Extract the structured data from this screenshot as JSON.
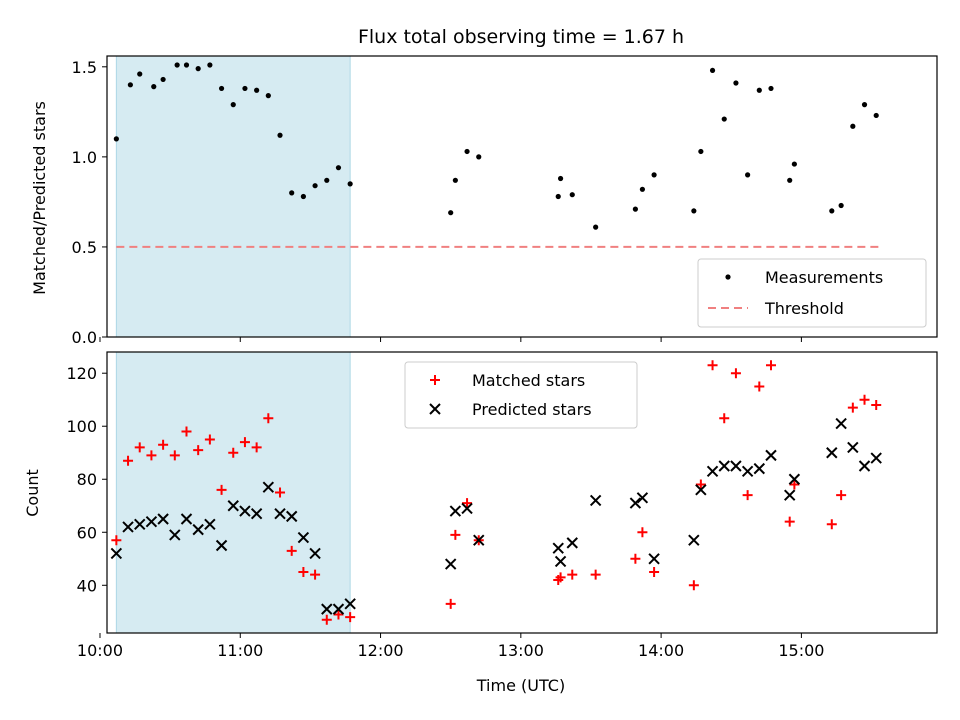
{
  "title": "Flux total observing time = 1.67 h",
  "xlabel": "Time (UTC)",
  "colors": {
    "highlight": "#add8e6",
    "threshold": "#f08080",
    "measurements": "#000000",
    "matched": "#ff0000",
    "predicted": "#000000"
  },
  "chart_data": [
    {
      "type": "scatter",
      "ylabel": "Matched/Predicted stars",
      "xlim": [
        "10:03",
        "15:58"
      ],
      "ylim": [
        0,
        1.5
      ],
      "x_ticks": [
        "10:00",
        "11:00",
        "12:00",
        "13:00",
        "14:00",
        "15:00"
      ],
      "y_ticks": [
        "0.0",
        "0.5",
        "1.0",
        "1.5"
      ],
      "highlight_span": [
        "10:07",
        "11:47"
      ],
      "legend": {
        "position": "lower right",
        "entries": [
          "Measurements",
          "Threshold"
        ]
      },
      "threshold": {
        "name": "Threshold",
        "y": 0.5,
        "x": [
          "10:07",
          "15:33"
        ],
        "style": "dashed"
      },
      "series": [
        {
          "name": "Measurements",
          "marker": "dot",
          "points": [
            [
              "10:07",
              1.1
            ],
            [
              "10:13",
              1.4
            ],
            [
              "10:17",
              1.46
            ],
            [
              "10:23",
              1.39
            ],
            [
              "10:27",
              1.43
            ],
            [
              "10:33",
              1.51
            ],
            [
              "10:37",
              1.51
            ],
            [
              "10:42",
              1.49
            ],
            [
              "10:47",
              1.51
            ],
            [
              "10:52",
              1.38
            ],
            [
              "10:57",
              1.29
            ],
            [
              "11:02",
              1.38
            ],
            [
              "11:07",
              1.37
            ],
            [
              "11:12",
              1.34
            ],
            [
              "11:17",
              1.12
            ],
            [
              "11:22",
              0.8
            ],
            [
              "11:27",
              0.78
            ],
            [
              "11:32",
              0.84
            ],
            [
              "11:37",
              0.87
            ],
            [
              "11:42",
              0.94
            ],
            [
              "11:47",
              0.85
            ],
            [
              "12:30",
              0.69
            ],
            [
              "12:32",
              0.87
            ],
            [
              "12:37",
              1.03
            ],
            [
              "12:42",
              1.0
            ],
            [
              "13:16",
              0.78
            ],
            [
              "13:17",
              0.88
            ],
            [
              "13:22",
              0.79
            ],
            [
              "13:32",
              0.61
            ],
            [
              "13:49",
              0.71
            ],
            [
              "13:52",
              0.82
            ],
            [
              "13:57",
              0.9
            ],
            [
              "14:14",
              0.7
            ],
            [
              "14:17",
              1.03
            ],
            [
              "14:22",
              1.48
            ],
            [
              "14:27",
              1.21
            ],
            [
              "14:32",
              1.41
            ],
            [
              "14:37",
              0.9
            ],
            [
              "14:42",
              1.37
            ],
            [
              "14:47",
              1.38
            ],
            [
              "14:55",
              0.87
            ],
            [
              "14:57",
              0.96
            ],
            [
              "15:13",
              0.7
            ],
            [
              "15:17",
              0.73
            ],
            [
              "15:22",
              1.17
            ],
            [
              "15:27",
              1.29
            ],
            [
              "15:32",
              1.23
            ]
          ]
        }
      ]
    },
    {
      "type": "scatter",
      "ylabel": "Count",
      "xlim": [
        "10:03",
        "15:58"
      ],
      "ylim": [
        22,
        128
      ],
      "x_ticks": [
        "10:00",
        "11:00",
        "12:00",
        "13:00",
        "14:00",
        "15:00"
      ],
      "y_ticks": [
        "40",
        "60",
        "80",
        "100",
        "120"
      ],
      "highlight_span": [
        "10:07",
        "11:47"
      ],
      "legend": {
        "position": "upper center",
        "entries": [
          "Matched stars",
          "Predicted stars"
        ]
      },
      "series": [
        {
          "name": "Matched stars",
          "marker": "plus",
          "points": [
            [
              "10:07",
              57
            ],
            [
              "10:12",
              87
            ],
            [
              "10:17",
              92
            ],
            [
              "10:22",
              89
            ],
            [
              "10:27",
              93
            ],
            [
              "10:32",
              89
            ],
            [
              "10:37",
              98
            ],
            [
              "10:42",
              91
            ],
            [
              "10:47",
              95
            ],
            [
              "10:52",
              76
            ],
            [
              "10:57",
              90
            ],
            [
              "11:02",
              94
            ],
            [
              "11:07",
              92
            ],
            [
              "11:12",
              103
            ],
            [
              "11:17",
              75
            ],
            [
              "11:22",
              53
            ],
            [
              "11:27",
              45
            ],
            [
              "11:32",
              44
            ],
            [
              "11:37",
              27
            ],
            [
              "11:42",
              29
            ],
            [
              "11:47",
              28
            ],
            [
              "12:30",
              33
            ],
            [
              "12:32",
              59
            ],
            [
              "12:37",
              71
            ],
            [
              "12:42",
              57
            ],
            [
              "13:16",
              42
            ],
            [
              "13:17",
              43
            ],
            [
              "13:22",
              44
            ],
            [
              "13:32",
              44
            ],
            [
              "13:49",
              50
            ],
            [
              "13:52",
              60
            ],
            [
              "13:57",
              45
            ],
            [
              "14:14",
              40
            ],
            [
              "14:17",
              78
            ],
            [
              "14:22",
              123
            ],
            [
              "14:27",
              103
            ],
            [
              "14:32",
              120
            ],
            [
              "14:37",
              74
            ],
            [
              "14:42",
              115
            ],
            [
              "14:47",
              123
            ],
            [
              "14:55",
              64
            ],
            [
              "14:57",
              78
            ],
            [
              "15:13",
              63
            ],
            [
              "15:17",
              74
            ],
            [
              "15:22",
              107
            ],
            [
              "15:27",
              110
            ],
            [
              "15:32",
              108
            ]
          ]
        },
        {
          "name": "Predicted stars",
          "marker": "x",
          "points": [
            [
              "10:07",
              52
            ],
            [
              "10:12",
              62
            ],
            [
              "10:17",
              63
            ],
            [
              "10:22",
              64
            ],
            [
              "10:27",
              65
            ],
            [
              "10:32",
              59
            ],
            [
              "10:37",
              65
            ],
            [
              "10:42",
              61
            ],
            [
              "10:47",
              63
            ],
            [
              "10:52",
              55
            ],
            [
              "10:57",
              70
            ],
            [
              "11:02",
              68
            ],
            [
              "11:07",
              67
            ],
            [
              "11:12",
              77
            ],
            [
              "11:17",
              67
            ],
            [
              "11:22",
              66
            ],
            [
              "11:27",
              58
            ],
            [
              "11:32",
              52
            ],
            [
              "11:37",
              31
            ],
            [
              "11:42",
              31
            ],
            [
              "11:47",
              33
            ],
            [
              "12:30",
              48
            ],
            [
              "12:32",
              68
            ],
            [
              "12:37",
              69
            ],
            [
              "12:42",
              57
            ],
            [
              "13:16",
              54
            ],
            [
              "13:17",
              49
            ],
            [
              "13:22",
              56
            ],
            [
              "13:32",
              72
            ],
            [
              "13:49",
              71
            ],
            [
              "13:52",
              73
            ],
            [
              "13:57",
              50
            ],
            [
              "14:14",
              57
            ],
            [
              "14:17",
              76
            ],
            [
              "14:22",
              83
            ],
            [
              "14:27",
              85
            ],
            [
              "14:32",
              85
            ],
            [
              "14:37",
              83
            ],
            [
              "14:42",
              84
            ],
            [
              "14:47",
              89
            ],
            [
              "14:55",
              74
            ],
            [
              "14:57",
              80
            ],
            [
              "15:13",
              90
            ],
            [
              "15:17",
              101
            ],
            [
              "15:22",
              92
            ],
            [
              "15:27",
              85
            ],
            [
              "15:32",
              88
            ]
          ]
        }
      ]
    }
  ]
}
